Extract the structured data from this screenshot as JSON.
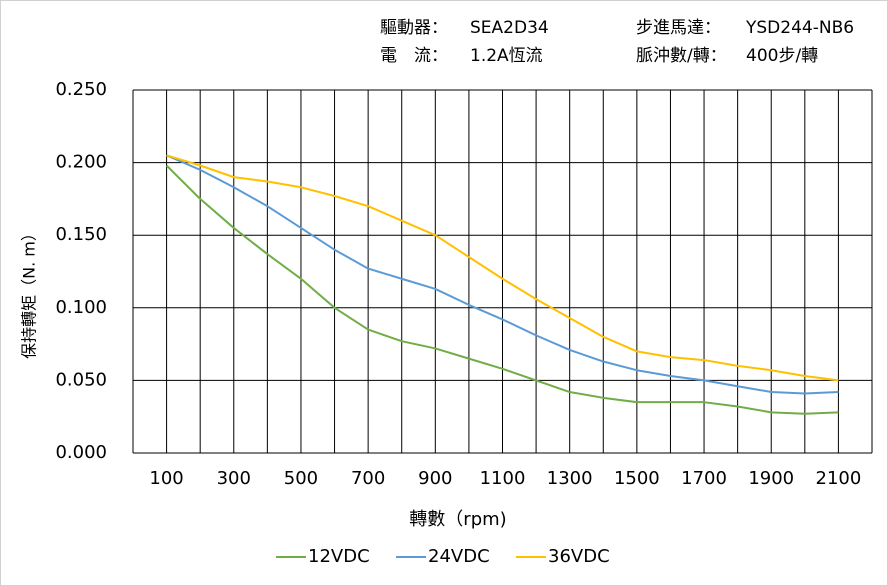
{
  "header": [
    {
      "label": "驅動器：",
      "value": "SEA2D34"
    },
    {
      "label": "步進馬達：",
      "value": "YSD244-NB6"
    },
    {
      "label": "電　流：",
      "value": "1.2A恆流"
    },
    {
      "label": "脈沖數/轉：",
      "value": "400步/轉"
    }
  ],
  "chart_data": {
    "type": "line",
    "x_label": "轉數（rpm)",
    "y_label": "保持轉矩（N. m）",
    "x": [
      100,
      200,
      300,
      400,
      500,
      600,
      700,
      800,
      900,
      1000,
      1100,
      1200,
      1300,
      1400,
      1500,
      1600,
      1700,
      1800,
      1900,
      2000,
      2100
    ],
    "series": [
      {
        "name": "12VDC",
        "color": "#70ad47",
        "values": [
          0.198,
          0.175,
          0.155,
          0.137,
          0.12,
          0.1,
          0.085,
          0.077,
          0.072,
          0.065,
          0.058,
          0.05,
          0.042,
          0.038,
          0.035,
          0.035,
          0.035,
          0.032,
          0.028,
          0.027,
          0.028
        ]
      },
      {
        "name": "24VDC",
        "color": "#5b9bd5",
        "values": [
          0.205,
          0.195,
          0.183,
          0.17,
          0.155,
          0.14,
          0.127,
          0.12,
          0.113,
          0.102,
          0.092,
          0.081,
          0.071,
          0.063,
          0.057,
          0.053,
          0.05,
          0.046,
          0.042,
          0.041,
          0.042
        ]
      },
      {
        "name": "36VDC",
        "color": "#ffc000",
        "values": [
          0.205,
          0.198,
          0.19,
          0.187,
          0.183,
          0.177,
          0.17,
          0.16,
          0.15,
          0.135,
          0.12,
          0.106,
          0.093,
          0.08,
          0.07,
          0.066,
          0.064,
          0.06,
          0.057,
          0.053,
          0.05
        ]
      }
    ],
    "xlim": [
      0,
      2200
    ],
    "xticks": [
      100,
      300,
      500,
      700,
      900,
      1100,
      1300,
      1500,
      1700,
      1900,
      2100
    ],
    "x_grid": [
      0,
      100,
      200,
      300,
      400,
      500,
      600,
      700,
      800,
      900,
      1000,
      1100,
      1200,
      1300,
      1400,
      1500,
      1600,
      1700,
      1800,
      1900,
      2000,
      2100,
      2200
    ],
    "ylim": [
      0,
      0.25
    ],
    "yticks": [
      {
        "value": 0,
        "label": "0.000"
      },
      {
        "value": 0.05,
        "label": "0.050"
      },
      {
        "value": 0.1,
        "label": "0.100"
      },
      {
        "value": 0.15,
        "label": "0.150"
      },
      {
        "value": 0.2,
        "label": "0.200"
      },
      {
        "value": 0.25,
        "label": "0.250"
      }
    ],
    "grid": true,
    "legend": "bottom"
  }
}
